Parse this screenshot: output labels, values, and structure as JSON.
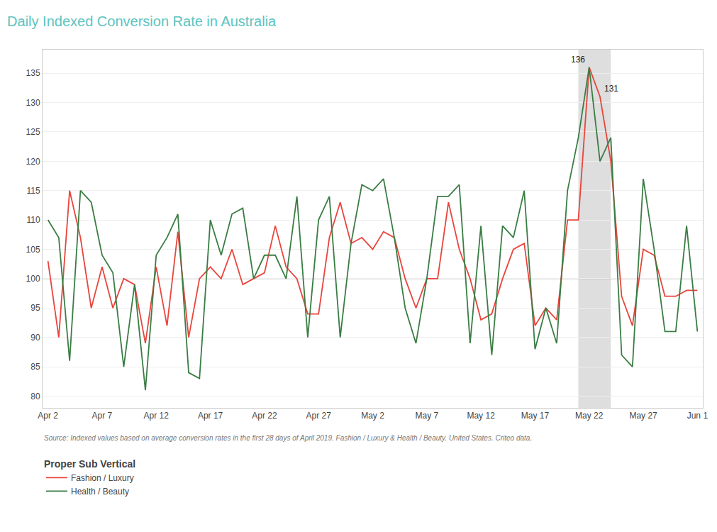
{
  "chart_data": {
    "type": "line",
    "title": "Daily Indexed Conversion Rate in Australia",
    "title_color": "#5bc4bf",
    "source_text": "Source: Indexed values based on average conversion rates in the first 28 days of April 2019. Fashion / Luxury & Health / Beauty. United States. Criteo data.",
    "legend_title": "Proper Sub Vertical",
    "legend": "bottom left",
    "categories": [
      "Apr 2",
      null,
      null,
      null,
      null,
      "Apr 7",
      null,
      null,
      null,
      null,
      "Apr 12",
      null,
      null,
      null,
      null,
      "Apr 17",
      null,
      null,
      null,
      null,
      "Apr 22",
      null,
      null,
      null,
      null,
      "Apr 27",
      null,
      null,
      null,
      null,
      "May 2",
      null,
      null,
      null,
      null,
      "May 7",
      null,
      null,
      null,
      null,
      "May 12",
      null,
      null,
      null,
      null,
      "May 17",
      null,
      null,
      null,
      null,
      "May 22",
      null,
      null,
      null,
      null,
      "May 27",
      null,
      null,
      null,
      null,
      "Jun 1"
    ],
    "series": [
      {
        "name": "Fashion / Luxury",
        "color": "#e8453c",
        "values": [
          103,
          90,
          115,
          107,
          95,
          102,
          95,
          100,
          99,
          89,
          102,
          92,
          108,
          90,
          100,
          102,
          100,
          105,
          99,
          100,
          101,
          109,
          102,
          100,
          94,
          94,
          107,
          113,
          106,
          107,
          105,
          108,
          107,
          100,
          95,
          100,
          100,
          113,
          105,
          100,
          93,
          94,
          100,
          105,
          106,
          92,
          95,
          93,
          110,
          110,
          136,
          131,
          120,
          97,
          92,
          105,
          104,
          97,
          97,
          98,
          98
        ]
      },
      {
        "name": "Health / Beauty",
        "color": "#3a7d44",
        "values": [
          110,
          107,
          86,
          115,
          113,
          104,
          101,
          85,
          99,
          81,
          104,
          107,
          111,
          84,
          83,
          110,
          104,
          111,
          112,
          100,
          104,
          104,
          100,
          114,
          90,
          110,
          114,
          90,
          106,
          116,
          115,
          117,
          107,
          95,
          89,
          100,
          114,
          114,
          116,
          89,
          109,
          87,
          109,
          107,
          115,
          88,
          95,
          89,
          115,
          124,
          136,
          120,
          124,
          87,
          85,
          117,
          105,
          91,
          91,
          109,
          91
        ]
      }
    ],
    "annotations": [
      {
        "text": "136",
        "x": 50,
        "y": 136
      },
      {
        "text": "131",
        "x": 51,
        "y": 131
      }
    ],
    "highlight_range": [
      49,
      52
    ],
    "highlight_color": "#d0d0d0",
    "hline": 100,
    "ylim": [
      78,
      139
    ],
    "yticks": [
      80,
      85,
      90,
      95,
      100,
      105,
      110,
      115,
      120,
      125,
      130,
      135
    ],
    "grid": "y"
  }
}
